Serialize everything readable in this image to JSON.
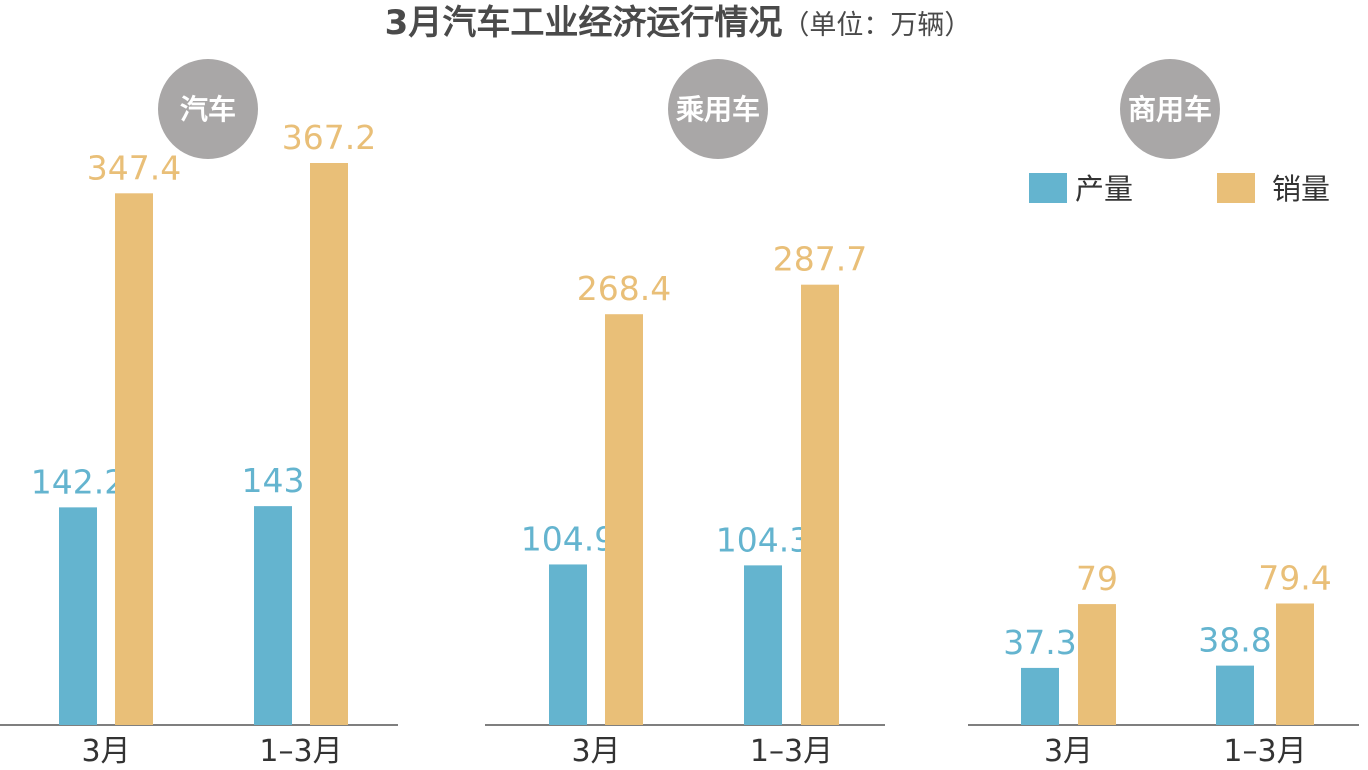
{
  "title": "3月汽车工业经济运行情况",
  "unit_label": "（单位：万辆）",
  "colors": {
    "production": "#64b4cf",
    "sales": "#e9bf78",
    "badge": "#a9a7a7"
  },
  "legend": [
    {
      "key": "production",
      "label": "产量"
    },
    {
      "key": "sales",
      "label": "销量"
    }
  ],
  "chart_data": [
    {
      "type": "bar",
      "title": "汽车",
      "categories": [
        "3月",
        "1–3月"
      ],
      "series": [
        {
          "name": "产量",
          "values": [
            142.2,
            143
          ]
        },
        {
          "name": "销量",
          "values": [
            347.4,
            367.2
          ]
        }
      ],
      "ylim": [
        0,
        367.2
      ]
    },
    {
      "type": "bar",
      "title": "乘用车",
      "categories": [
        "3月",
        "1–3月"
      ],
      "series": [
        {
          "name": "产量",
          "values": [
            104.9,
            104.3
          ]
        },
        {
          "name": "销量",
          "values": [
            268.4,
            287.7
          ]
        }
      ],
      "ylim": [
        0,
        367.2
      ]
    },
    {
      "type": "bar",
      "title": "商用车",
      "categories": [
        "3月",
        "1–3月"
      ],
      "series": [
        {
          "name": "产量",
          "values": [
            37.3,
            38.8
          ]
        },
        {
          "name": "销量",
          "values": [
            79,
            79.4
          ]
        }
      ],
      "ylim": [
        0,
        367.2
      ]
    }
  ]
}
